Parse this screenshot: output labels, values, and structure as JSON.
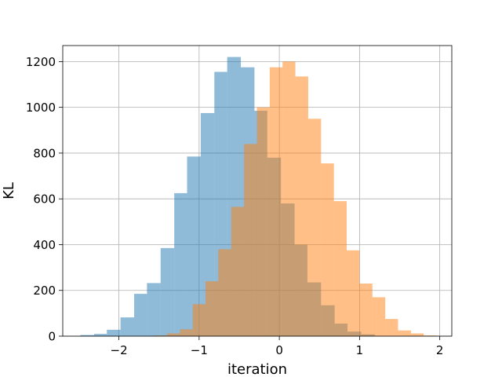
{
  "chart_data": {
    "type": "bar",
    "title": "",
    "xlabel": "iteration",
    "ylabel": "KL",
    "xlim": [
      -2.7,
      2.15
    ],
    "ylim": [
      0,
      1270
    ],
    "grid": true,
    "xticks": [
      -2,
      -1,
      0,
      1,
      2
    ],
    "xtick_labels": [
      "−2",
      "−1",
      "0",
      "1",
      "2"
    ],
    "yticks": [
      0,
      200,
      400,
      600,
      800,
      1000,
      1200
    ],
    "ytick_labels": [
      "0",
      "200",
      "400",
      "600",
      "800",
      "1000",
      "1200"
    ],
    "series": [
      {
        "color": "#1f77b4",
        "opacity": 0.5,
        "bin_edges": [
          -2.48,
          -2.31,
          -2.15,
          -1.98,
          -1.81,
          -1.65,
          -1.48,
          -1.31,
          -1.15,
          -0.98,
          -0.81,
          -0.65,
          -0.48,
          -0.31,
          -0.15,
          0.02,
          0.19,
          0.35,
          0.52,
          0.69,
          0.85,
          1.02,
          1.19
        ],
        "values": [
          5,
          10,
          28,
          82,
          185,
          232,
          385,
          625,
          785,
          975,
          1155,
          1220,
          1175,
          985,
          780,
          580,
          400,
          235,
          135,
          55,
          20,
          8
        ]
      },
      {
        "color": "#ff7f0e",
        "opacity": 0.5,
        "bin_edges": [
          -1.56,
          -1.4,
          -1.24,
          -1.08,
          -0.92,
          -0.76,
          -0.6,
          -0.44,
          -0.28,
          -0.12,
          0.04,
          0.2,
          0.36,
          0.52,
          0.68,
          0.84,
          1.0,
          1.16,
          1.32,
          1.48,
          1.64,
          1.8,
          1.96
        ],
        "values": [
          3,
          12,
          30,
          140,
          240,
          380,
          565,
          840,
          1000,
          1175,
          1200,
          1135,
          950,
          755,
          590,
          375,
          230,
          170,
          75,
          25,
          12,
          3
        ]
      }
    ]
  }
}
